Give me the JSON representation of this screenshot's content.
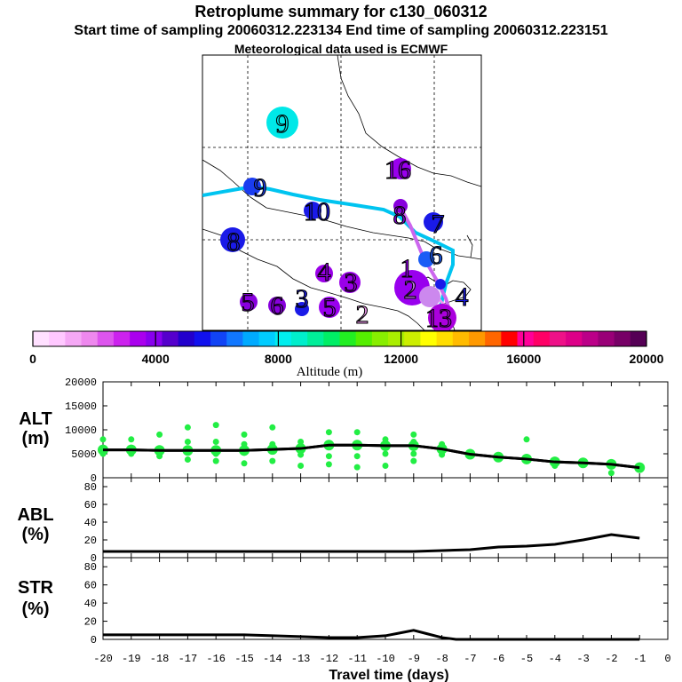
{
  "header": {
    "title": "Retroplume summary for c130_060312",
    "sampling": "Start time of sampling 20060312.223134     End time of sampling 20060312.223151",
    "met": "Meteorological data used is ECMWF"
  },
  "map": {
    "labels": [
      {
        "text": "9",
        "color": "#00e8e8"
      },
      {
        "text": "16",
        "color": "#9900ee"
      },
      {
        "text": "9",
        "color": "#1a3cf0"
      },
      {
        "text": "10",
        "color": "#1a1ae8"
      },
      {
        "text": "8",
        "color": "#8800dd"
      },
      {
        "text": "8",
        "color": "#1a1ae8"
      },
      {
        "text": "7",
        "color": "#1a1ae8"
      },
      {
        "text": "6",
        "color": "#1a5cf5"
      },
      {
        "text": "4",
        "color": "#9a00e8"
      },
      {
        "text": "3",
        "color": "#9a00e8"
      },
      {
        "text": "5",
        "color": "#8800dd"
      },
      {
        "text": "6",
        "color": "#8800dd"
      },
      {
        "text": "3",
        "color": "#1a1ae8"
      },
      {
        "text": "5",
        "color": "#9900ee"
      },
      {
        "text": "2",
        "color": "#ee99ee"
      },
      {
        "text": "1",
        "color": "#9900ee"
      },
      {
        "text": "2",
        "color": "#cc88ee"
      },
      {
        "text": "13",
        "color": "#aa00dd"
      },
      {
        "text": "4",
        "color": "#1a1ae8"
      }
    ]
  },
  "colorbar": {
    "label": "Altitude (m)",
    "ticks": [
      "0",
      "4000",
      "8000",
      "12000",
      "16000",
      "20000"
    ],
    "colors": [
      "#ffe0ff",
      "#ffc8ff",
      "#f5a8f5",
      "#ee88ee",
      "#dd55ee",
      "#cc22ee",
      "#aa00ee",
      "#8800ee",
      "#5500cc",
      "#2200cc",
      "#1111ee",
      "#1144f5",
      "#1177ff",
      "#00aaff",
      "#00ccff",
      "#00eeee",
      "#00eecc",
      "#00ee99",
      "#00ee66",
      "#22ee22",
      "#55ee00",
      "#88ee00",
      "#aaee00",
      "#ccee00",
      "#ffff00",
      "#ffdd00",
      "#ffbb00",
      "#ff9900",
      "#ff6600",
      "#ff0000",
      "#ff0099",
      "#ff0066",
      "#ee1188",
      "#dd0088",
      "#bb0088",
      "#990077",
      "#770066",
      "#550055"
    ]
  },
  "chart_data": {
    "type": "line",
    "x": [
      -20,
      -19,
      -18,
      -17,
      -16,
      -15,
      -14,
      -13,
      -12,
      -11,
      -10,
      -9,
      -8,
      -7,
      -6,
      -5,
      -4,
      -3,
      -2,
      -1
    ],
    "xlabel": "Travel time (days)",
    "xlim": [
      -20,
      0
    ],
    "xticks": [
      "-20",
      "-19",
      "-18",
      "-17",
      "-16",
      "-15",
      "-14",
      "-13",
      "-12",
      "-11",
      "-10",
      "-9",
      "-8",
      "-7",
      "-6",
      "-5",
      "-4",
      "-3",
      "-2",
      "-1",
      "0"
    ],
    "panels": [
      {
        "label": "ALT\n(m)",
        "ylim": [
          0,
          20000
        ],
        "yticks": [
          "0",
          "5000",
          "10000",
          "15000",
          "20000"
        ],
        "series": [
          {
            "name": "mean altitude",
            "values": [
              5800,
              5800,
              5700,
              5700,
              5700,
              5700,
              5900,
              6100,
              6800,
              6800,
              6700,
              6700,
              6000,
              4900,
              4300,
              3900,
              3300,
              3100,
              2800,
              2100
            ]
          },
          {
            "name": "plume clusters",
            "points": [
              [
                -20,
                8000
              ],
              [
                -20,
                5000
              ],
              [
                -19,
                8000
              ],
              [
                -19,
                5000
              ],
              [
                -18,
                9000
              ],
              [
                -18,
                5500
              ],
              [
                -18,
                4500
              ],
              [
                -17,
                10500
              ],
              [
                -17,
                7500
              ],
              [
                -17,
                5500
              ],
              [
                -17,
                3800
              ],
              [
                -16,
                11000
              ],
              [
                -16,
                7500
              ],
              [
                -16,
                5000
              ],
              [
                -16,
                3500
              ],
              [
                -15,
                9000
              ],
              [
                -15,
                7000
              ],
              [
                -15,
                5200
              ],
              [
                -15,
                3000
              ],
              [
                -14,
                10500
              ],
              [
                -14,
                7000
              ],
              [
                -14,
                5500
              ],
              [
                -14,
                3500
              ],
              [
                -13,
                7500
              ],
              [
                -13,
                4800
              ],
              [
                -13,
                2500
              ],
              [
                -12,
                9500
              ],
              [
                -12,
                6800
              ],
              [
                -12,
                4500
              ],
              [
                -12,
                2800
              ],
              [
                -11,
                9500
              ],
              [
                -11,
                7000
              ],
              [
                -11,
                4500
              ],
              [
                -11,
                2200
              ],
              [
                -10,
                8000
              ],
              [
                -10,
                5000
              ],
              [
                -10,
                2500
              ],
              [
                -9,
                9000
              ],
              [
                -9,
                7500
              ],
              [
                -9,
                5000
              ],
              [
                -9,
                3500
              ],
              [
                -8,
                7000
              ],
              [
                -8,
                4800
              ],
              [
                -7,
                5000
              ],
              [
                -6,
                4200
              ],
              [
                -5,
                8000
              ],
              [
                -5,
                3800
              ],
              [
                -4,
                3300
              ],
              [
                -4,
                2500
              ],
              [
                -3,
                3000
              ],
              [
                -2,
                2800
              ],
              [
                -2,
                1000
              ],
              [
                -1,
                2000
              ]
            ]
          }
        ]
      },
      {
        "label": "ABL\n(%)",
        "ylim": [
          0,
          90
        ],
        "yticks": [
          "0",
          "20",
          "40",
          "60",
          "80"
        ],
        "series": [
          {
            "name": "ABL fraction",
            "values": [
              7,
              7,
              7,
              7,
              7,
              7,
              7,
              7,
              7,
              7,
              7,
              7,
              8,
              9,
              12,
              13,
              15,
              20,
              26,
              22
            ]
          }
        ]
      },
      {
        "label": "STR\n(%)",
        "ylim": [
          0,
          90
        ],
        "yticks": [
          "0",
          "20",
          "40",
          "60",
          "80"
        ],
        "series": [
          {
            "name": "STR fraction",
            "x": [
              -20,
              -19,
              -18,
              -17,
              -16,
              -15,
              -14,
              -13,
              -12,
              -11,
              -10,
              -9.5,
              -9,
              -8.5,
              -8,
              -7.5,
              -7,
              -6,
              -5,
              -4,
              -3,
              -2,
              -1
            ],
            "values": [
              5,
              5,
              5,
              5,
              5,
              5,
              4,
              3,
              2,
              2,
              4,
              7,
              10,
              6,
              2,
              0,
              0,
              0,
              0,
              0,
              0,
              0,
              0
            ]
          }
        ]
      }
    ]
  }
}
